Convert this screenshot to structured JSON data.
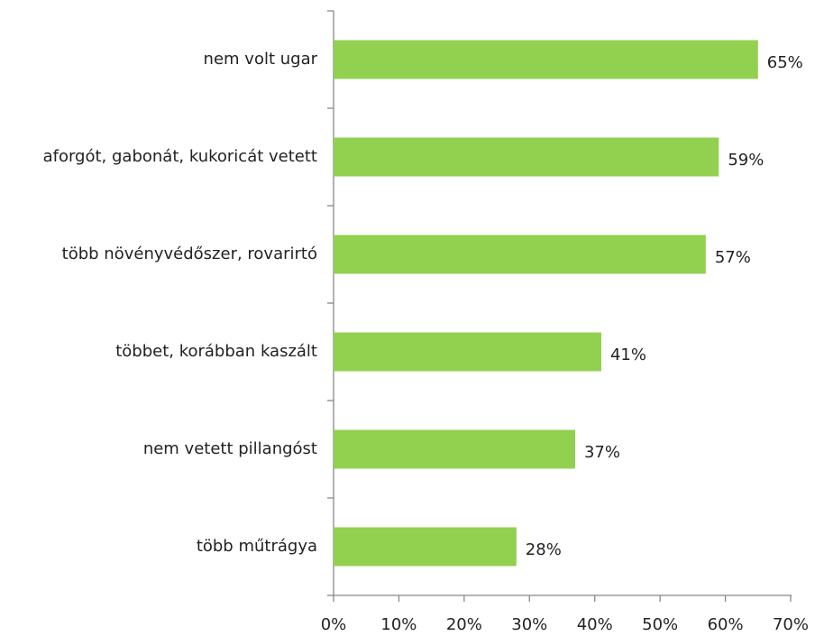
{
  "chart_data": {
    "type": "bar",
    "orientation": "horizontal",
    "categories": [
      "nem volt ugar",
      "aforgót, gabonát, kukoricát vetett",
      "több növényvédőszer, rovarirtó",
      "többet, korábban kaszált",
      "nem vetett pillangóst",
      "több műtrágya"
    ],
    "values": [
      65,
      59,
      57,
      41,
      37,
      28
    ],
    "value_labels": [
      "65%",
      "59%",
      "57%",
      "41%",
      "37%",
      "28%"
    ],
    "color": "#92d050",
    "xlim": [
      0,
      70
    ],
    "xticks": [
      {
        "value": 0,
        "label": "0%"
      },
      {
        "value": 10,
        "label": "10%"
      },
      {
        "value": 20,
        "label": "20%"
      },
      {
        "value": 30,
        "label": "30%"
      },
      {
        "value": 40,
        "label": "40%"
      },
      {
        "value": 50,
        "label": "50%"
      },
      {
        "value": 60,
        "label": "60%"
      },
      {
        "value": 70,
        "label": "70%"
      }
    ],
    "grid": false
  }
}
